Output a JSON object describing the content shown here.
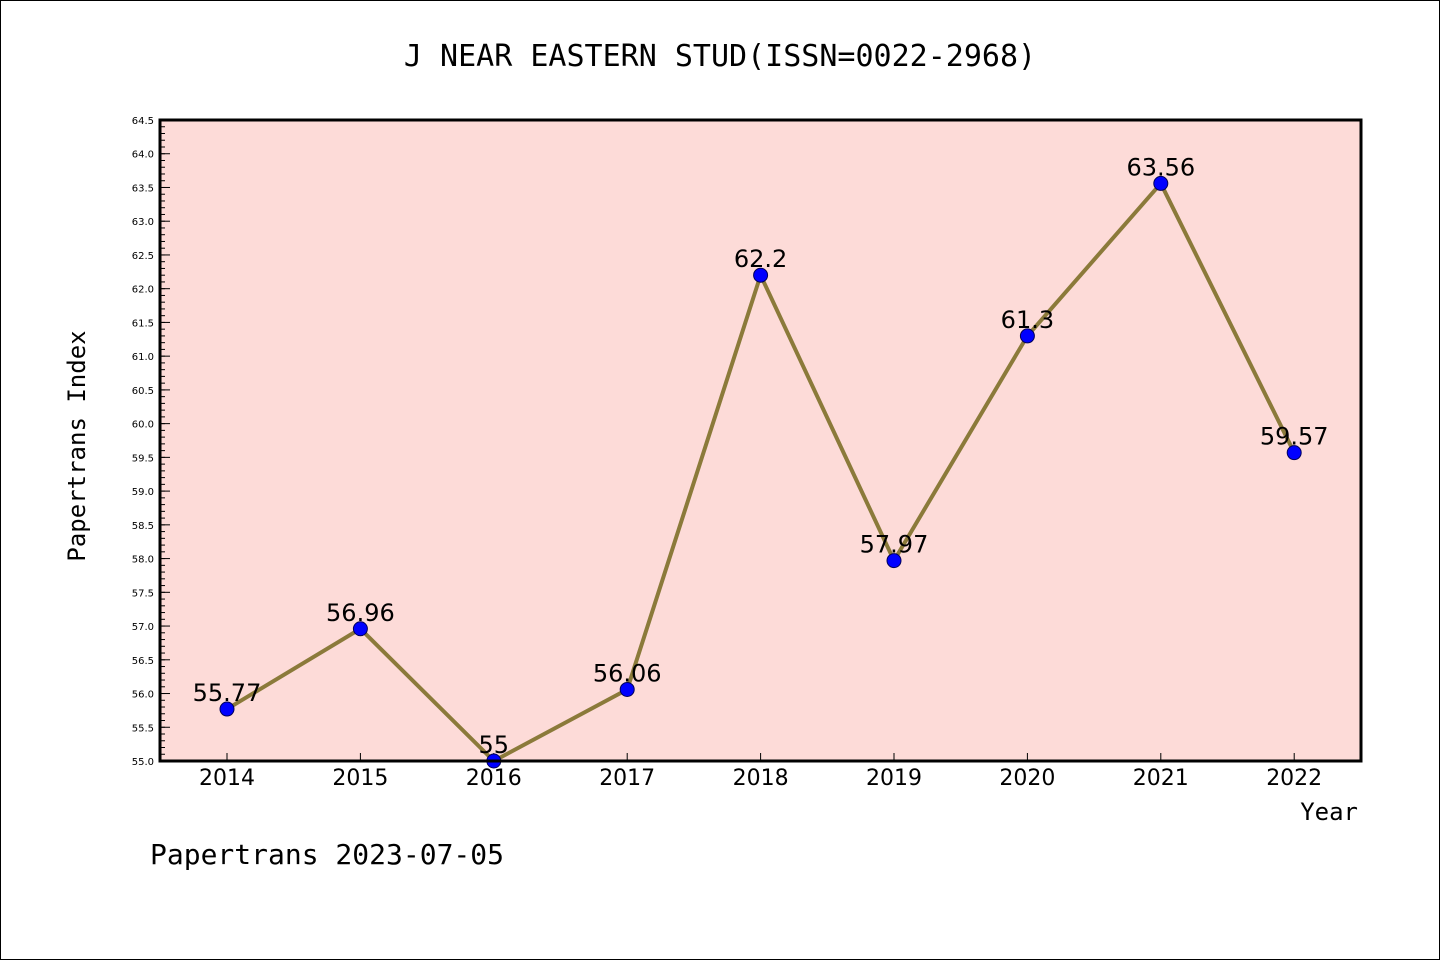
{
  "chart_data": {
    "type": "line",
    "title": "J NEAR EASTERN STUD(ISSN=0022-2968)",
    "xlabel": "Year",
    "ylabel": "Papertrans Index",
    "categories": [
      "2014",
      "2015",
      "2016",
      "2017",
      "2018",
      "2019",
      "2020",
      "2021",
      "2022"
    ],
    "values": [
      55.77,
      56.96,
      55,
      56.06,
      62.2,
      57.97,
      61.3,
      63.56,
      59.57
    ],
    "data_labels": [
      "55.77",
      "56.96",
      "55",
      "56.06",
      "62.2",
      "57.97",
      "61.3",
      "63.56",
      "59.57"
    ],
    "ylim": [
      55.0,
      64.5
    ],
    "yticks": [
      "55.0",
      "55.5",
      "56.0",
      "56.5",
      "57.0",
      "57.5",
      "58.0",
      "58.5",
      "59.0",
      "59.5",
      "60.0",
      "60.5",
      "61.0",
      "61.5",
      "62.0",
      "62.5",
      "63.0",
      "63.5",
      "64.0",
      "64.5"
    ],
    "grid": false,
    "plot_background": "#fddbd8",
    "line_color": "#8b7a3a",
    "marker_color": "#0000ff"
  },
  "footer": "Papertrans 2023-07-05"
}
